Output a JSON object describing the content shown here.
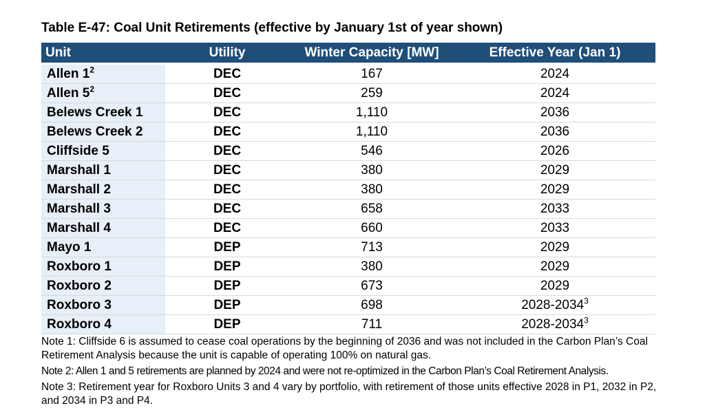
{
  "caption": "Table E-47: Coal Unit Retirements (effective by January 1st of year shown)",
  "table": {
    "headers": [
      "Unit",
      "Utility",
      "Winter Capacity [MW]",
      "Effective Year (Jan 1)"
    ],
    "rows": [
      {
        "unit": "Allen 1",
        "unit_sup": "2",
        "utility": "DEC",
        "capacity": "167",
        "year": "2024",
        "year_sup": ""
      },
      {
        "unit": "Allen 5",
        "unit_sup": "2",
        "utility": "DEC",
        "capacity": "259",
        "year": "2024",
        "year_sup": ""
      },
      {
        "unit": "Belews Creek 1",
        "unit_sup": "",
        "utility": "DEC",
        "capacity": "1,110",
        "year": "2036",
        "year_sup": ""
      },
      {
        "unit": "Belews Creek 2",
        "unit_sup": "",
        "utility": "DEC",
        "capacity": "1,110",
        "year": "2036",
        "year_sup": ""
      },
      {
        "unit": "Cliffside 5",
        "unit_sup": "",
        "utility": "DEC",
        "capacity": "546",
        "year": "2026",
        "year_sup": ""
      },
      {
        "unit": "Marshall 1",
        "unit_sup": "",
        "utility": "DEC",
        "capacity": "380",
        "year": "2029",
        "year_sup": ""
      },
      {
        "unit": "Marshall 2",
        "unit_sup": "",
        "utility": "DEC",
        "capacity": "380",
        "year": "2029",
        "year_sup": ""
      },
      {
        "unit": "Marshall 3",
        "unit_sup": "",
        "utility": "DEC",
        "capacity": "658",
        "year": "2033",
        "year_sup": ""
      },
      {
        "unit": "Marshall 4",
        "unit_sup": "",
        "utility": "DEC",
        "capacity": "660",
        "year": "2033",
        "year_sup": ""
      },
      {
        "unit": "Mayo 1",
        "unit_sup": "",
        "utility": "DEP",
        "capacity": "713",
        "year": "2029",
        "year_sup": ""
      },
      {
        "unit": "Roxboro 1",
        "unit_sup": "",
        "utility": "DEP",
        "capacity": "380",
        "year": "2029",
        "year_sup": ""
      },
      {
        "unit": "Roxboro 2",
        "unit_sup": "",
        "utility": "DEP",
        "capacity": "673",
        "year": "2029",
        "year_sup": ""
      },
      {
        "unit": "Roxboro 3",
        "unit_sup": "",
        "utility": "DEP",
        "capacity": "698",
        "year": "2028-2034",
        "year_sup": "3"
      },
      {
        "unit": "Roxboro 4",
        "unit_sup": "",
        "utility": "DEP",
        "capacity": "711",
        "year": "2028-2034",
        "year_sup": "3"
      }
    ]
  },
  "notes": [
    "Note 1: Cliffside 6 is assumed to cease coal operations by the beginning of 2036 and was not included in the Carbon Plan’s Coal Retirement Analysis because the unit is capable of operating 100% on natural gas.",
    "Note 2: Allen 1 and 5 retirements are planned by 2024 and were not re-optimized in the Carbon Plan’s Coal Retirement Analysis.",
    "Note 3: Retirement year for Roxboro Units 3 and 4 vary by portfolio, with retirement of those units effective 2028 in P1, 2032 in P2, and 2034 in P3 and P4."
  ],
  "colors": {
    "header_bg": "#1f4e79",
    "unit_column_bg": "#e7eff8"
  }
}
